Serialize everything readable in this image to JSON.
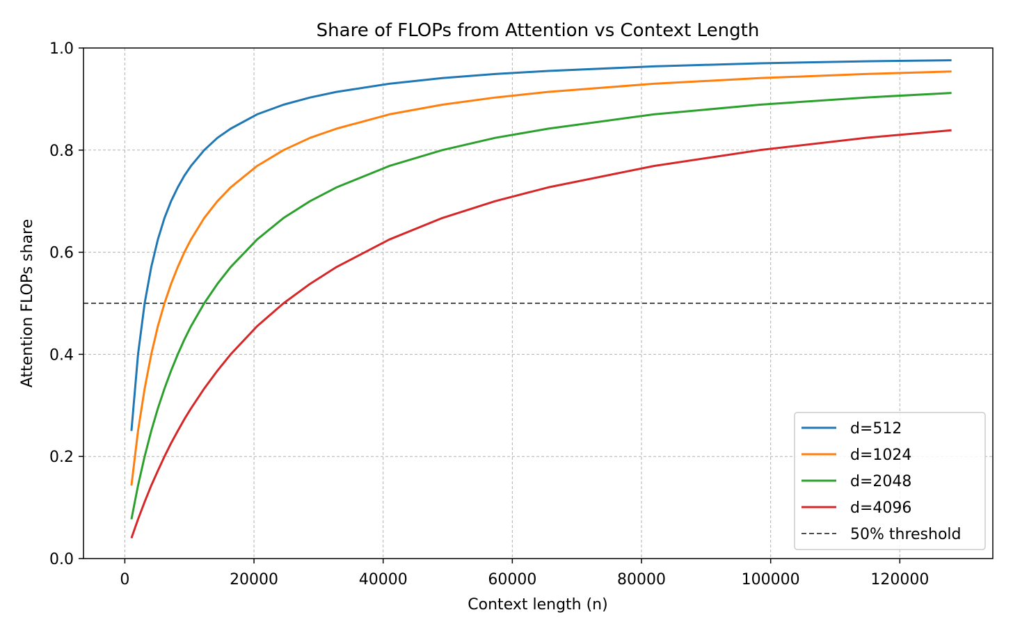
{
  "chart_data": {
    "type": "line",
    "title": "Share of FLOPs from Attention vs Context Length",
    "xlabel": "Context length (n)",
    "ylabel": "Attention FLOPs share",
    "xlim": [
      -6400,
      134400
    ],
    "ylim": [
      0,
      1
    ],
    "x_ticks": [
      0,
      20000,
      40000,
      60000,
      80000,
      100000,
      120000
    ],
    "x_tick_labels": [
      "0",
      "20000",
      "40000",
      "60000",
      "80000",
      "100000",
      "120000"
    ],
    "y_ticks": [
      0,
      0.2,
      0.4,
      0.6,
      0.8,
      1.0
    ],
    "y_tick_labels": [
      "0.0",
      "0.2",
      "0.4",
      "0.6",
      "0.8",
      "1.0"
    ],
    "grid": true,
    "legend_position": "lower-right",
    "x": [
      1024,
      2048,
      3072,
      4096,
      5120,
      6144,
      7168,
      8192,
      9216,
      10240,
      12288,
      14336,
      16384,
      20480,
      24576,
      28672,
      32768,
      40960,
      49152,
      57344,
      65536,
      81920,
      98304,
      114688,
      128000
    ],
    "series": [
      {
        "name": "d=512",
        "color": "#1f77b4",
        "values": [
          0.25,
          0.4,
          0.5,
          0.571,
          0.625,
          0.667,
          0.7,
          0.727,
          0.75,
          0.769,
          0.8,
          0.824,
          0.842,
          0.87,
          0.889,
          0.903,
          0.914,
          0.93,
          0.941,
          0.949,
          0.955,
          0.964,
          0.97,
          0.974,
          0.976
        ]
      },
      {
        "name": "d=1024",
        "color": "#ff7f0e",
        "values": [
          0.143,
          0.25,
          0.333,
          0.4,
          0.455,
          0.5,
          0.538,
          0.571,
          0.6,
          0.625,
          0.667,
          0.7,
          0.727,
          0.769,
          0.8,
          0.824,
          0.842,
          0.87,
          0.889,
          0.903,
          0.914,
          0.93,
          0.941,
          0.949,
          0.954
        ]
      },
      {
        "name": "d=2048",
        "color": "#2ca02c",
        "values": [
          0.077,
          0.143,
          0.2,
          0.25,
          0.294,
          0.333,
          0.368,
          0.4,
          0.429,
          0.455,
          0.5,
          0.538,
          0.571,
          0.625,
          0.667,
          0.7,
          0.727,
          0.769,
          0.8,
          0.824,
          0.842,
          0.87,
          0.889,
          0.903,
          0.912
        ]
      },
      {
        "name": "d=4096",
        "color": "#d62728",
        "values": [
          0.04,
          0.077,
          0.111,
          0.143,
          0.172,
          0.2,
          0.226,
          0.25,
          0.273,
          0.294,
          0.333,
          0.368,
          0.4,
          0.455,
          0.5,
          0.538,
          0.571,
          0.625,
          0.667,
          0.7,
          0.727,
          0.769,
          0.8,
          0.824,
          0.839
        ]
      }
    ],
    "threshold": {
      "name": "50% threshold",
      "value": 0.5,
      "color": "#333333",
      "style": "dashed"
    }
  }
}
